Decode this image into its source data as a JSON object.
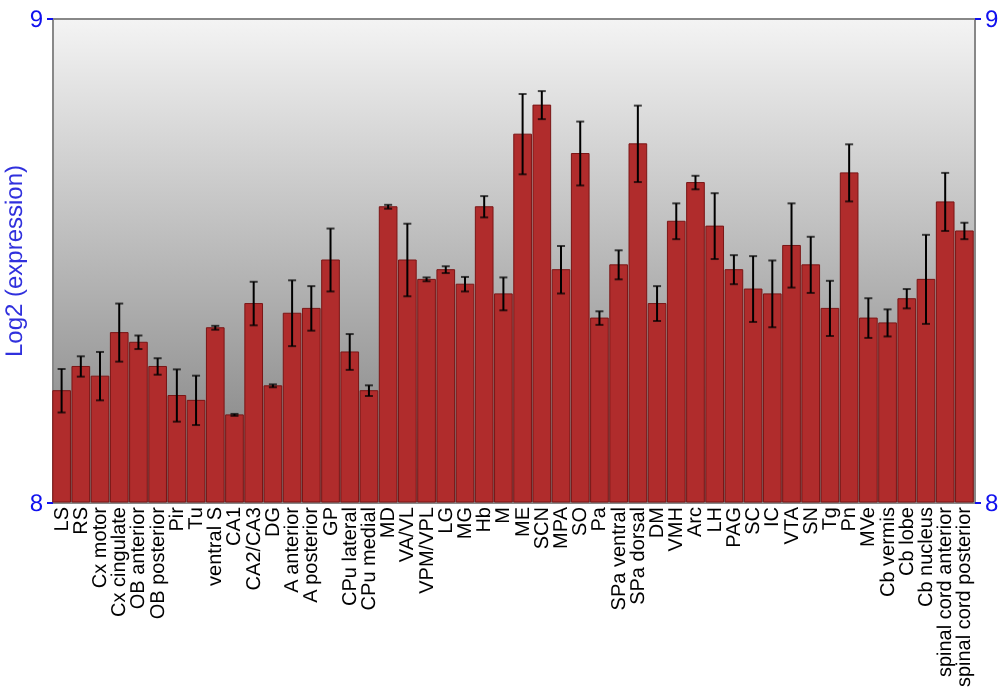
{
  "chart_data": {
    "type": "bar",
    "ylabel": "Log2 (expression)",
    "categories": [
      "LS",
      "RS",
      "Cx motor",
      "Cx cingulate",
      "OB anterior",
      "OB posterior",
      "Pir",
      "Tu",
      "ventral S",
      "CA1",
      "CA2/CA3",
      "DG",
      "A anterior",
      "A posterior",
      "GP",
      "CPu lateral",
      "CPu medial",
      "MD",
      "VA/VL",
      "VPM/VPL",
      "LG",
      "MG",
      "Hb",
      "M",
      "ME",
      "SCN",
      "MPA",
      "SO",
      "Pa",
      "SPa ventral",
      "SPa dorsal",
      "DM",
      "VMH",
      "Arc",
      "LH",
      "PAG",
      "SC",
      "IC",
      "VTA",
      "SN",
      "Tg",
      "Pn",
      "MVe",
      "Cb vermis",
      "Cb lobe",
      "Cb nucleus",
      "spinal cord anterior",
      "spinal cord posterior"
    ],
    "values": [
      8.23,
      8.28,
      8.26,
      8.35,
      8.33,
      8.28,
      8.22,
      8.21,
      8.36,
      8.18,
      8.41,
      8.24,
      8.39,
      8.4,
      8.5,
      8.31,
      8.23,
      8.61,
      8.5,
      8.46,
      8.48,
      8.45,
      8.61,
      8.43,
      8.76,
      8.82,
      8.48,
      8.72,
      8.38,
      8.49,
      8.74,
      8.41,
      8.58,
      8.66,
      8.57,
      8.48,
      8.44,
      8.43,
      8.53,
      8.49,
      8.4,
      8.68,
      8.38,
      8.37,
      8.42,
      8.46,
      8.62,
      8.56
    ],
    "errors": [
      0.045,
      0.021,
      0.05,
      0.06,
      0.014,
      0.017,
      0.054,
      0.051,
      0.004,
      0.002,
      0.045,
      0.003,
      0.068,
      0.046,
      0.065,
      0.037,
      0.011,
      0.004,
      0.075,
      0.004,
      0.007,
      0.015,
      0.022,
      0.034,
      0.083,
      0.029,
      0.049,
      0.066,
      0.014,
      0.03,
      0.079,
      0.036,
      0.037,
      0.014,
      0.068,
      0.03,
      0.068,
      0.069,
      0.087,
      0.058,
      0.057,
      0.059,
      0.041,
      0.028,
      0.02,
      0.092,
      0.06,
      0.017
    ],
    "color": "#b02c2c",
    "ylim": [
      8,
      9
    ],
    "yticks": [
      8,
      9
    ],
    "y2lim": [
      8,
      9
    ],
    "y2ticks": [
      8,
      9
    ],
    "grid": false
  }
}
